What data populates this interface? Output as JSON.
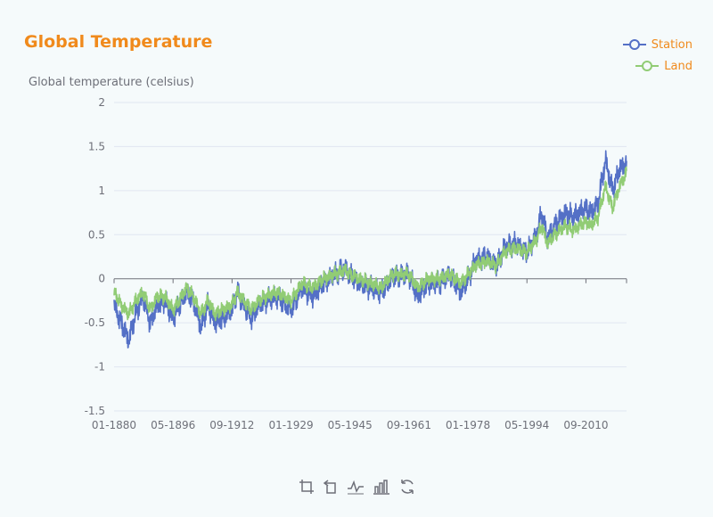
{
  "title": "Global Temperature",
  "colors": {
    "title": "#f08a1c",
    "station": "#5470c6",
    "land": "#91cc75",
    "axis": "#6e7079",
    "grid": "#e0e6f1"
  },
  "toolbox": [
    "crop-zoom-icon",
    "zoom-reset-icon",
    "line-chart-icon",
    "bar-chart-icon",
    "refresh-icon"
  ],
  "chart_data": {
    "type": "line",
    "title": "Global Temperature",
    "ylabel": "Global temperature (celsius)",
    "xlabel": "",
    "ylim": [
      -1.5,
      2
    ],
    "yticks": [
      -1.5,
      -1,
      -0.5,
      0,
      0.5,
      1,
      1.5,
      2
    ],
    "xlim": [
      "1880-01",
      "2021-12"
    ],
    "xticks": [
      "01-1880",
      "05-1896",
      "09-1912",
      "01-1929",
      "05-1945",
      "09-1961",
      "01-1978",
      "05-1994",
      "09-2010"
    ],
    "legend": "top-right",
    "grid": true,
    "series": [
      {
        "name": "Station",
        "color": "#5470c6",
        "x": [
          "1880-01",
          "1882-01",
          "1884-01",
          "1886-01",
          "1888-01",
          "1890-01",
          "1892-01",
          "1894-01",
          "1896-05",
          "1898-01",
          "1900-01",
          "1902-01",
          "1904-01",
          "1906-01",
          "1908-01",
          "1910-01",
          "1912-09",
          "1914-01",
          "1916-01",
          "1918-01",
          "1920-01",
          "1922-01",
          "1925-01",
          "1929-01",
          "1932-01",
          "1935-01",
          "1938-01",
          "1941-01",
          "1944-01",
          "1945-05",
          "1948-01",
          "1951-01",
          "1954-01",
          "1957-01",
          "1961-09",
          "1964-01",
          "1967-01",
          "1970-01",
          "1973-01",
          "1976-01",
          "1978-01",
          "1980-01",
          "1983-01",
          "1986-01",
          "1988-01",
          "1991-01",
          "1994-05",
          "1997-01",
          "1998-06",
          "2000-01",
          "2002-01",
          "2005-01",
          "2007-01",
          "2010-09",
          "2012-01",
          "2014-01",
          "2016-02",
          "2018-01",
          "2020-01",
          "2021-12"
        ],
        "y": [
          -0.3,
          -0.5,
          -0.7,
          -0.4,
          -0.2,
          -0.5,
          -0.3,
          -0.25,
          -0.45,
          -0.3,
          -0.15,
          -0.25,
          -0.55,
          -0.3,
          -0.5,
          -0.45,
          -0.35,
          -0.15,
          -0.3,
          -0.45,
          -0.3,
          -0.25,
          -0.2,
          -0.35,
          -0.1,
          -0.2,
          -0.05,
          0.05,
          0.12,
          0.05,
          -0.05,
          -0.1,
          -0.15,
          0.02,
          0.05,
          -0.2,
          -0.05,
          -0.05,
          0.05,
          -0.15,
          0.0,
          0.2,
          0.25,
          0.15,
          0.35,
          0.4,
          0.3,
          0.5,
          0.75,
          0.45,
          0.6,
          0.75,
          0.7,
          0.8,
          0.75,
          0.85,
          1.35,
          1.0,
          1.25,
          1.3
        ]
      },
      {
        "name": "Land",
        "color": "#91cc75",
        "x": [
          "1880-01",
          "1882-01",
          "1884-01",
          "1886-01",
          "1888-01",
          "1890-01",
          "1892-01",
          "1894-01",
          "1896-05",
          "1898-01",
          "1900-01",
          "1902-01",
          "1904-01",
          "1906-01",
          "1908-01",
          "1910-01",
          "1912-09",
          "1914-01",
          "1916-01",
          "1918-01",
          "1920-01",
          "1922-01",
          "1925-01",
          "1929-01",
          "1932-01",
          "1935-01",
          "1938-01",
          "1941-01",
          "1944-01",
          "1945-05",
          "1948-01",
          "1951-01",
          "1954-01",
          "1957-01",
          "1961-09",
          "1964-01",
          "1967-01",
          "1970-01",
          "1973-01",
          "1976-01",
          "1978-01",
          "1980-01",
          "1983-01",
          "1986-01",
          "1988-01",
          "1991-01",
          "1994-05",
          "1997-01",
          "1998-06",
          "2000-01",
          "2002-01",
          "2005-01",
          "2007-01",
          "2010-09",
          "2012-01",
          "2014-01",
          "2016-02",
          "2018-01",
          "2020-01",
          "2021-12"
        ],
        "y": [
          -0.15,
          -0.3,
          -0.4,
          -0.25,
          -0.15,
          -0.35,
          -0.2,
          -0.2,
          -0.35,
          -0.25,
          -0.1,
          -0.2,
          -0.4,
          -0.25,
          -0.4,
          -0.35,
          -0.3,
          -0.15,
          -0.25,
          -0.35,
          -0.25,
          -0.2,
          -0.15,
          -0.25,
          -0.05,
          -0.1,
          0.0,
          0.05,
          0.1,
          0.05,
          0.0,
          -0.05,
          -0.1,
          0.05,
          0.05,
          -0.1,
          0.0,
          0.0,
          0.05,
          -0.05,
          0.05,
          0.15,
          0.2,
          0.15,
          0.3,
          0.35,
          0.3,
          0.45,
          0.6,
          0.4,
          0.5,
          0.6,
          0.55,
          0.65,
          0.6,
          0.7,
          1.05,
          0.8,
          1.05,
          1.2
        ]
      }
    ]
  }
}
